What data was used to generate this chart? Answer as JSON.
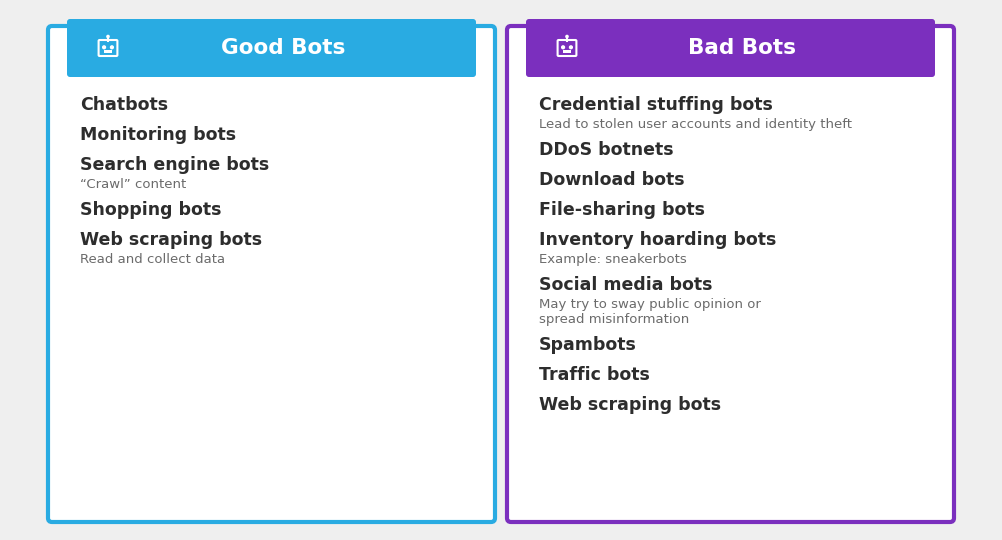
{
  "good_bots": {
    "title": "Good Bots",
    "header_color": "#29ABE2",
    "border_color": "#29ABE2",
    "items": [
      {
        "main": "Chatbots",
        "sub": ""
      },
      {
        "main": "Monitoring bots",
        "sub": ""
      },
      {
        "main": "Search engine bots",
        "sub": "“Crawl” content"
      },
      {
        "main": "Shopping bots",
        "sub": ""
      },
      {
        "main": "Web scraping bots",
        "sub": "Read and collect data"
      }
    ]
  },
  "bad_bots": {
    "title": "Bad Bots",
    "header_color": "#7B2FBE",
    "border_color": "#7B2FBE",
    "items": [
      {
        "main": "Credential stuffing bots",
        "sub": "Lead to stolen user accounts and identity theft"
      },
      {
        "main": "DDoS botnets",
        "sub": ""
      },
      {
        "main": "Download bots",
        "sub": ""
      },
      {
        "main": "File-sharing bots",
        "sub": ""
      },
      {
        "main": "Inventory hoarding bots",
        "sub": "Example: sneakerbots"
      },
      {
        "main": "Social media bots",
        "sub": "May try to sway public opinion or\nspread misinformation"
      },
      {
        "main": "Spambots",
        "sub": ""
      },
      {
        "main": "Traffic bots",
        "sub": ""
      },
      {
        "main": "Web scraping bots",
        "sub": ""
      }
    ]
  },
  "background_color": "#efefef",
  "main_text_color": "#2d2d2d",
  "sub_text_color": "#6b6b6b",
  "main_fontsize": 12.5,
  "sub_fontsize": 9.5,
  "title_fontsize": 15.5
}
